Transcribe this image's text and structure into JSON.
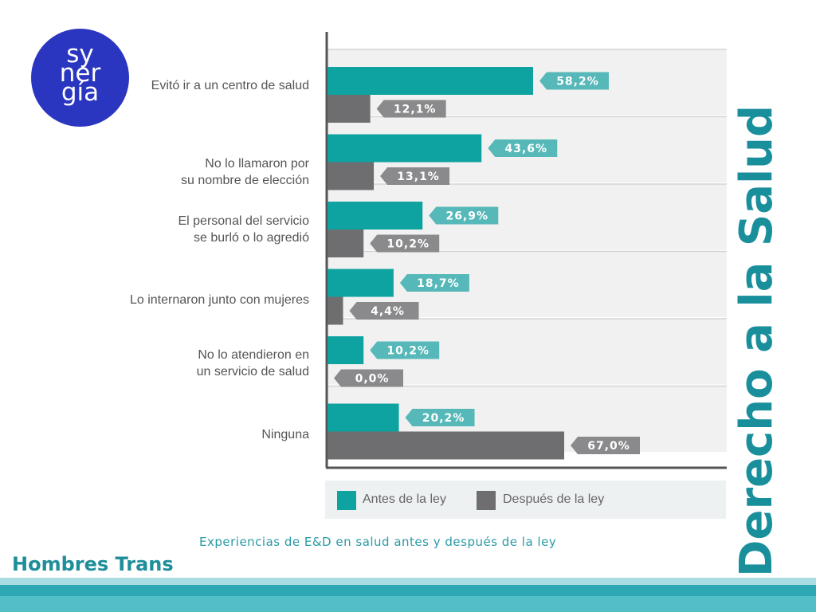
{
  "logo": {
    "line1": "sy",
    "line2": "ner",
    "line3": "gía"
  },
  "side_title": "Derecho a la Salud",
  "footer_title": "Hombres Trans",
  "subtitle": "Experiencias de E&D en salud antes y después de la ley",
  "colors": {
    "antes": "#0ea3a1",
    "despues": "#6e6e70",
    "antes_label_bg": "#56b8b8",
    "despues_label_bg": "#8a8a8c",
    "accent": "#1a8f9c"
  },
  "legend": {
    "antes": "Antes de la ley",
    "despues": "Después de la ley"
  },
  "categories": [
    {
      "line1": "Evitó ir a un centro de salud",
      "line2": ""
    },
    {
      "line1": "No lo llamaron por",
      "line2": "su nombre de elección"
    },
    {
      "line1": "El personal del servicio",
      "line2": "se burló o lo agredió"
    },
    {
      "line1": "Lo internaron junto con mujeres",
      "line2": ""
    },
    {
      "line1": "No lo atendieron en",
      "line2": "un servicio de salud"
    },
    {
      "line1": "Ninguna",
      "line2": ""
    }
  ],
  "chart_data": {
    "type": "bar",
    "orientation": "horizontal",
    "categories": [
      "Evitó ir a un centro de salud",
      "No lo llamaron por su nombre de elección",
      "El personal del servicio se burló o lo agredió",
      "Lo internaron junto con mujeres",
      "No lo atendieron en un servicio de salud",
      "Ninguna"
    ],
    "series": [
      {
        "name": "Antes de la ley",
        "values": [
          58.2,
          43.6,
          26.9,
          18.7,
          10.2,
          20.2
        ],
        "labels": [
          "58,2%",
          "43,6%",
          "26,9%",
          "18,7%",
          "10,2%",
          "20,2%"
        ]
      },
      {
        "name": "Después de la ley",
        "values": [
          12.1,
          13.1,
          10.2,
          4.4,
          0.0,
          67.0
        ],
        "labels": [
          "12,1%",
          "13,1%",
          "10,2%",
          "4,4%",
          "0,0%",
          "67,0%"
        ]
      }
    ],
    "xlim": [
      0,
      100
    ],
    "grid": false,
    "legend_position": "bottom"
  }
}
